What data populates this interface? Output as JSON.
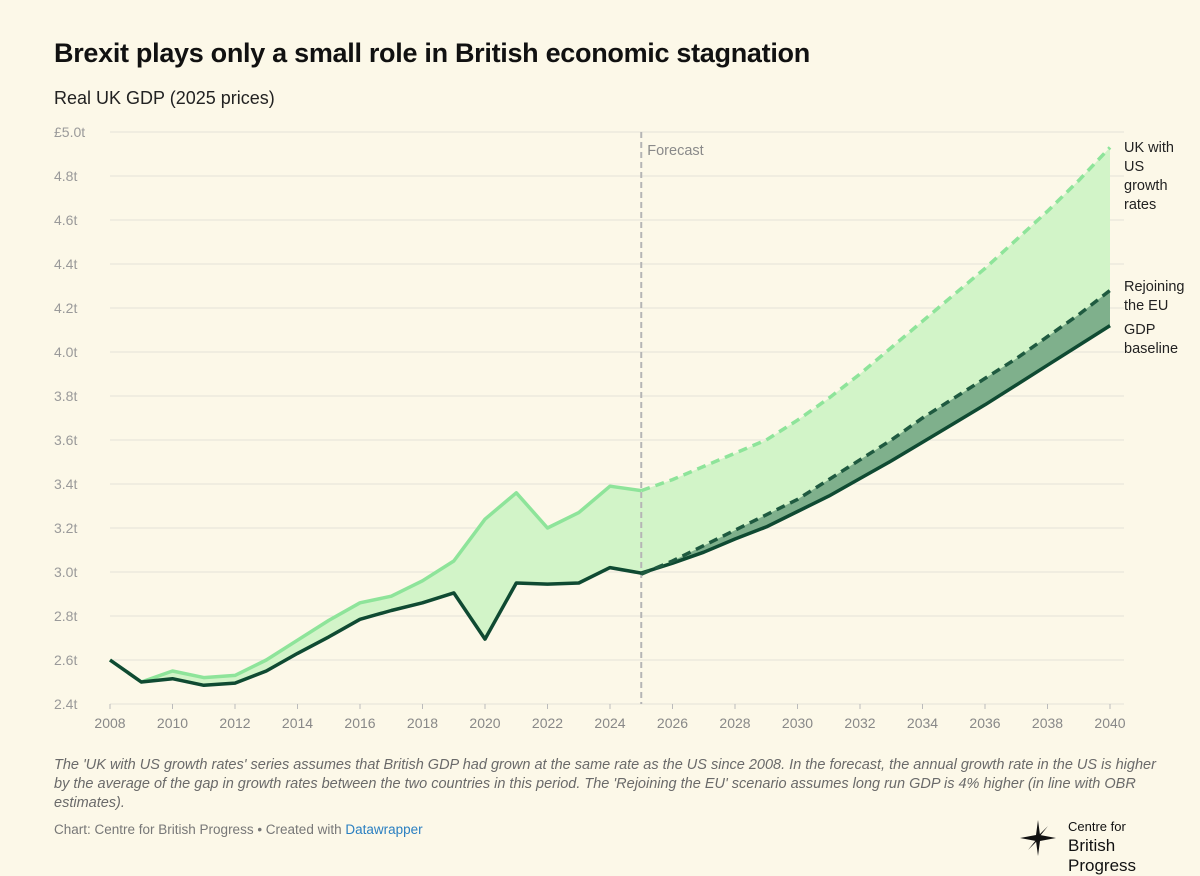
{
  "title": "Brexit plays only a small role in British economic stagnation",
  "subtitle": "Real UK GDP (2025 prices)",
  "notes": "The 'UK with US growth rates' series assumes that British GDP had grown at the same rate as the US since 2008. In the forecast, the annual growth rate in the US is higher by the average of the gap in growth rates between the two countries in this period. The 'Rejoining the EU' scenario assumes long run GDP is 4% higher (in line with OBR estimates).",
  "source": {
    "prefix": "Chart: Centre for British Progress • Created with ",
    "link_text": "Datawrapper"
  },
  "logo": {
    "line1": "Centre for",
    "line2": "British Progress"
  },
  "colors": {
    "background": "#fcf8e8",
    "baseline": "#0f4a32",
    "us_growth": "#8ee49a",
    "rejoin": "#1f5a40",
    "area_light": "#d2f4c8",
    "area_dark": "#7fb08c",
    "grid": "#e4e2d8"
  },
  "chart_data": {
    "type": "line",
    "title": "Brexit plays only a small role in British economic stagnation",
    "ylabel": "Real UK GDP (2025 prices)",
    "xlabel": "",
    "xlim": [
      2008,
      2040
    ],
    "ylim": [
      2.4,
      5.0
    ],
    "x_ticks": [
      "2008",
      "2010",
      "2012",
      "2014",
      "2016",
      "2018",
      "2020",
      "2022",
      "2024",
      "2026",
      "2028",
      "2030",
      "2032",
      "2034",
      "2036",
      "2038",
      "2040"
    ],
    "y_ticks": [
      {
        "value": 2.4,
        "label": "2.4t"
      },
      {
        "value": 2.6,
        "label": "2.6t"
      },
      {
        "value": 2.8,
        "label": "2.8t"
      },
      {
        "value": 3.0,
        "label": "3.0t"
      },
      {
        "value": 3.2,
        "label": "3.2t"
      },
      {
        "value": 3.4,
        "label": "3.4t"
      },
      {
        "value": 3.6,
        "label": "3.6t"
      },
      {
        "value": 3.8,
        "label": "3.8t"
      },
      {
        "value": 4.0,
        "label": "4.0t"
      },
      {
        "value": 4.2,
        "label": "4.2t"
      },
      {
        "value": 4.4,
        "label": "4.4t"
      },
      {
        "value": 4.6,
        "label": "4.6t"
      },
      {
        "value": 4.8,
        "label": "4.8t"
      },
      {
        "value": 5.0,
        "label": "£5.0t"
      }
    ],
    "forecast_start": 2025,
    "forecast_label": "Forecast",
    "series": [
      {
        "name": "UK with US growth rates",
        "label_lines": [
          "UK with",
          "US",
          "growth",
          "rates"
        ],
        "x": [
          2008,
          2009,
          2010,
          2011,
          2012,
          2013,
          2014,
          2015,
          2016,
          2017,
          2018,
          2019,
          2020,
          2021,
          2022,
          2023,
          2024,
          2025,
          2026,
          2027,
          2028,
          2029,
          2030,
          2031,
          2032,
          2033,
          2034,
          2035,
          2036,
          2037,
          2038,
          2039,
          2040
        ],
        "values": [
          2.6,
          2.5,
          2.55,
          2.52,
          2.53,
          2.6,
          2.69,
          2.78,
          2.86,
          2.89,
          2.96,
          3.05,
          3.24,
          3.36,
          3.2,
          3.27,
          3.39,
          3.37,
          3.42,
          3.48,
          3.54,
          3.6,
          3.69,
          3.79,
          3.9,
          4.02,
          4.14,
          4.26,
          4.38,
          4.51,
          4.64,
          4.78,
          4.93
        ]
      },
      {
        "name": "Rejoining the EU",
        "label_lines": [
          "Rejoining",
          "the EU"
        ],
        "x": [
          2025,
          2026,
          2027,
          2028,
          2029,
          2030,
          2031,
          2032,
          2033,
          2034,
          2035,
          2036,
          2037,
          2038,
          2039,
          2040
        ],
        "values": [
          2.99,
          3.05,
          3.12,
          3.19,
          3.26,
          3.33,
          3.42,
          3.51,
          3.6,
          3.7,
          3.79,
          3.88,
          3.97,
          4.07,
          4.17,
          4.28
        ]
      },
      {
        "name": "GDP baseline",
        "label_lines": [
          "GDP",
          "baseline"
        ],
        "x": [
          2008,
          2009,
          2010,
          2011,
          2012,
          2013,
          2014,
          2015,
          2016,
          2017,
          2018,
          2019,
          2020,
          2021,
          2022,
          2023,
          2024,
          2025,
          2026,
          2027,
          2028,
          2029,
          2030,
          2031,
          2032,
          2033,
          2034,
          2035,
          2036,
          2037,
          2038,
          2039,
          2040
        ],
        "values": [
          2.6,
          2.5,
          2.515,
          2.485,
          2.495,
          2.55,
          2.63,
          2.705,
          2.785,
          2.825,
          2.86,
          2.905,
          2.695,
          2.95,
          2.945,
          2.95,
          3.02,
          2.995,
          3.04,
          3.09,
          3.15,
          3.205,
          3.275,
          3.345,
          3.425,
          3.505,
          3.59,
          3.675,
          3.76,
          3.85,
          3.94,
          4.03,
          4.12
        ]
      }
    ]
  }
}
